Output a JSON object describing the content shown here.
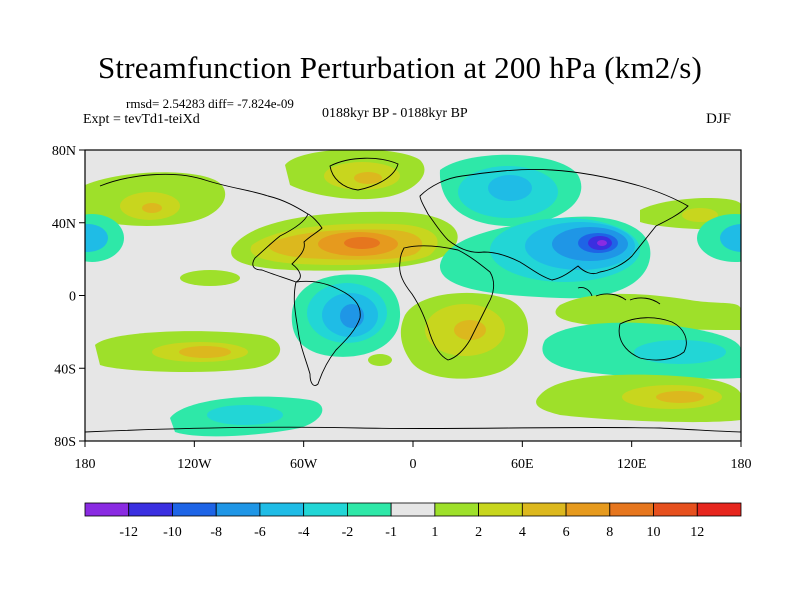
{
  "title": "Streamfunction Perturbation at 200 hPa (km2/s)",
  "stats": {
    "rmsd_label": "rmsd= 2.54283 diff= -7.824e-09"
  },
  "expt_label": "Expt = tevTd1-teiXd",
  "period_label": "0188kyr BP - 0188kyr BP",
  "season_label": "DJF",
  "map": {
    "lat_ticks": [
      "80N",
      "40N",
      "0",
      "40S",
      "80S"
    ],
    "lon_ticks": [
      "180",
      "120W",
      "60W",
      "0",
      "60E",
      "120E",
      "180"
    ]
  },
  "colorbar": {
    "colors": [
      "#8a2be2",
      "#3a2fe0",
      "#1e64e6",
      "#1f96e6",
      "#1fbce6",
      "#22d6d6",
      "#2ee8a8",
      "#e6e6e6",
      "#9ee02a",
      "#c8d61e",
      "#dcb81e",
      "#e69a1e",
      "#e6761e",
      "#e6501e",
      "#e6261e"
    ],
    "labels": [
      "-12",
      "-10",
      "-8",
      "-6",
      "-4",
      "-2",
      "-1",
      "1",
      "2",
      "4",
      "6",
      "8",
      "10",
      "12"
    ]
  }
}
